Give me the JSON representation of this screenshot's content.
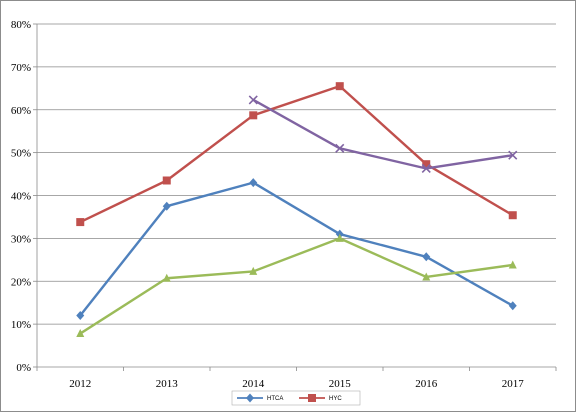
{
  "chart_data": {
    "type": "line",
    "title": "",
    "xlabel": "",
    "ylabel": "",
    "categories": [
      "2012",
      "2013",
      "2014",
      "2015",
      "2016",
      "2017"
    ],
    "ylim": [
      0,
      0.8
    ],
    "y_ticks": [
      0,
      0.1,
      0.2,
      0.3,
      0.4,
      0.5,
      0.6,
      0.7,
      0.8
    ],
    "y_tick_labels": [
      "0%",
      "10%",
      "20%",
      "30%",
      "40%",
      "50%",
      "60%",
      "70%",
      "80%"
    ],
    "grid": "horizontal",
    "legend_position": "bottom",
    "series": [
      {
        "name": "HTCA",
        "color": "#4f81bd",
        "marker": "diamond",
        "values": [
          0.12,
          0.375,
          0.43,
          0.31,
          0.257,
          0.143
        ]
      },
      {
        "name": "HYC",
        "color": "#c0504d",
        "marker": "square",
        "values": [
          0.338,
          0.435,
          0.587,
          0.655,
          0.473,
          0.354
        ]
      },
      {
        "color": "#8064a2",
        "marker": "x",
        "values": [
          null,
          null,
          0.623,
          0.51,
          0.463,
          0.494
        ]
      },
      {
        "color": "#9bbb59",
        "marker": "triangle",
        "values": [
          0.078,
          0.207,
          0.223,
          0.3,
          0.21,
          0.238
        ]
      }
    ]
  }
}
